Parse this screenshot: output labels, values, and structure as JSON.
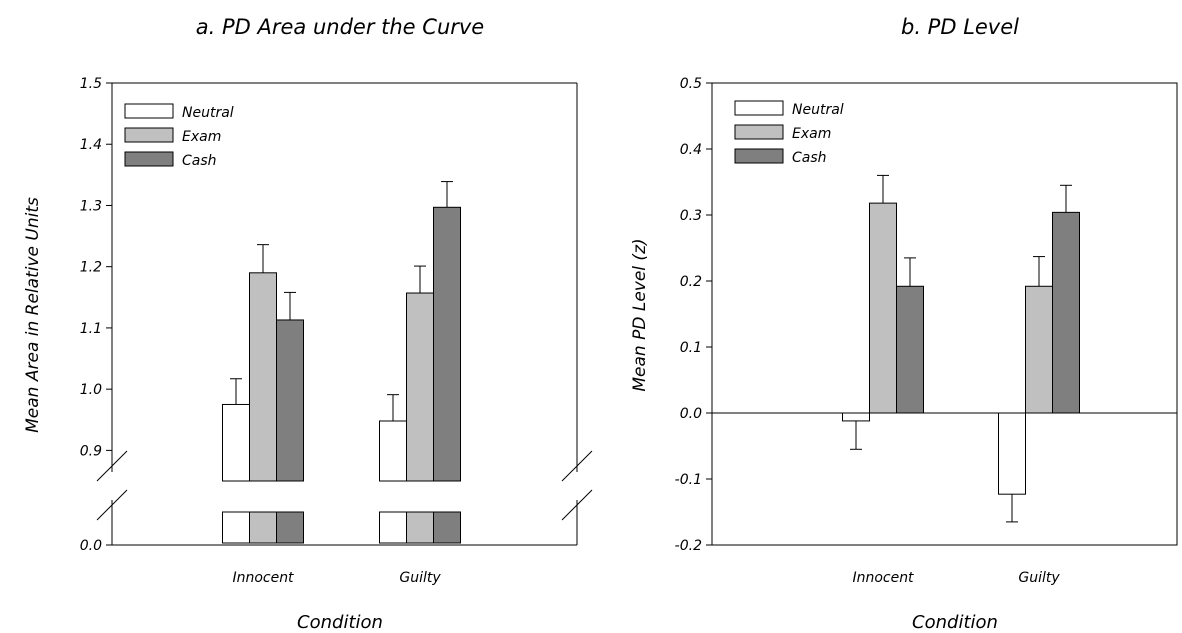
{
  "chart_data": [
    {
      "type": "bar",
      "title": "a. PD Area under the Curve",
      "xlabel": "Condition",
      "ylabel": "Mean Area in Relative Units",
      "categories": [
        "Innocent",
        "Guilty"
      ],
      "series": [
        {
          "name": "Neutral",
          "color": "#ffffff",
          "values": [
            0.975,
            0.948
          ],
          "errors": [
            0.042,
            0.043
          ]
        },
        {
          "name": "Exam",
          "color": "#c0c0c0",
          "values": [
            1.19,
            1.157
          ],
          "errors": [
            0.046,
            0.044
          ]
        },
        {
          "name": "Cash",
          "color": "#7f7f7f",
          "values": [
            1.113,
            1.297
          ],
          "errors": [
            0.045,
            0.042
          ]
        }
      ],
      "ylim": [
        0.85,
        1.5
      ],
      "axis_break": true,
      "yticks": [
        "0.0",
        "0.9",
        "1.0",
        "1.1",
        "1.2",
        "1.3",
        "1.4",
        "1.5"
      ],
      "legend": "top-left",
      "grid": false
    },
    {
      "type": "bar",
      "title": "b. PD Level",
      "xlabel": "Condition",
      "ylabel": "Mean PD Level (z)",
      "categories": [
        "Innocent",
        "Guilty"
      ],
      "series": [
        {
          "name": "Neutral",
          "color": "#ffffff",
          "values": [
            -0.012,
            -0.123
          ],
          "errors": [
            0.043,
            0.042
          ]
        },
        {
          "name": "Exam",
          "color": "#c0c0c0",
          "values": [
            0.318,
            0.192
          ],
          "errors": [
            0.042,
            0.045
          ]
        },
        {
          "name": "Cash",
          "color": "#7f7f7f",
          "values": [
            0.192,
            0.304
          ],
          "errors": [
            0.043,
            0.041
          ]
        }
      ],
      "ylim": [
        -0.2,
        0.5
      ],
      "yticks": [
        "-0.2",
        "-0.1",
        "0.0",
        "0.1",
        "0.2",
        "0.3",
        "0.4",
        "0.5"
      ],
      "legend": "top-left",
      "grid": false
    }
  ]
}
